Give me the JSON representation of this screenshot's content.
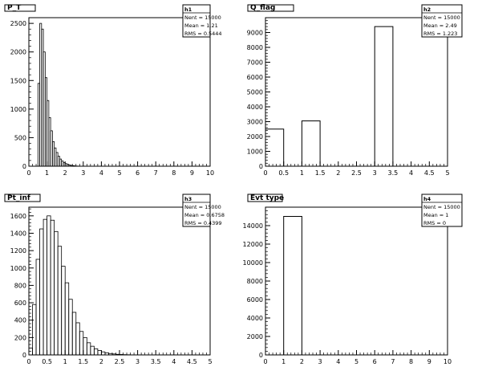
{
  "chart_data": [
    {
      "type": "bar",
      "title": "P_T",
      "stats": {
        "name": "h1",
        "entries": "Nent = 15000",
        "mean": "Mean = 1.21",
        "rms": "RMS = 0.5444"
      },
      "xlim": [
        0,
        10
      ],
      "ylim": [
        0,
        2600
      ],
      "xticks": [
        "0",
        "1",
        "2",
        "3",
        "4",
        "5",
        "6",
        "7",
        "8",
        "9",
        "10"
      ],
      "xtick_values": [
        0,
        1,
        2,
        3,
        4,
        5,
        6,
        7,
        8,
        9,
        10
      ],
      "yticks": [
        "0",
        "500",
        "1000",
        "1500",
        "2000",
        "2500"
      ],
      "ytick_values": [
        0,
        500,
        1000,
        1500,
        2000,
        2500
      ],
      "bin_width": 0.1,
      "bin_start": 0.5,
      "values": [
        1450,
        2500,
        2400,
        2000,
        1550,
        1150,
        850,
        620,
        430,
        320,
        240,
        175,
        125,
        90,
        65,
        45,
        32,
        22,
        15,
        10,
        6,
        3,
        2,
        1,
        1
      ]
    },
    {
      "type": "bar",
      "title": "Q_flag",
      "stats": {
        "name": "h2",
        "entries": "Nent = 15000",
        "mean": "Mean = 2.49",
        "rms": "RMS = 1.223"
      },
      "xlim": [
        0,
        5
      ],
      "ylim": [
        0,
        10000
      ],
      "xticks": [
        "0",
        "0.5",
        "1",
        "1.5",
        "2",
        "2.5",
        "3",
        "3.5",
        "4",
        "4.5",
        "5"
      ],
      "xtick_values": [
        0,
        0.5,
        1,
        1.5,
        2,
        2.5,
        3,
        3.5,
        4,
        4.5,
        5
      ],
      "yticks": [
        "0",
        "1000",
        "2000",
        "3000",
        "4000",
        "5000",
        "6000",
        "7000",
        "8000",
        "9000"
      ],
      "ytick_values": [
        0,
        1000,
        2000,
        3000,
        4000,
        5000,
        6000,
        7000,
        8000,
        9000
      ],
      "bars": [
        {
          "x0": 0,
          "x1": 0.5,
          "value": 2500
        },
        {
          "x0": 1,
          "x1": 1.5,
          "value": 3050
        },
        {
          "x0": 3,
          "x1": 3.5,
          "value": 9400
        }
      ]
    },
    {
      "type": "bar",
      "title": "Pt_inf",
      "stats": {
        "name": "h3",
        "entries": "Nent = 15000",
        "mean": "Mean = 0.6758",
        "rms": "RMS = 0.4399"
      },
      "xlim": [
        0,
        5
      ],
      "ylim": [
        0,
        1700
      ],
      "xticks": [
        "0",
        "0.5",
        "1",
        "1.5",
        "2",
        "2.5",
        "3",
        "3.5",
        "4",
        "4.5",
        "5"
      ],
      "xtick_values": [
        0,
        0.5,
        1,
        1.5,
        2,
        2.5,
        3,
        3.5,
        4,
        4.5,
        5
      ],
      "yticks": [
        "0",
        "200",
        "400",
        "600",
        "800",
        "1000",
        "1200",
        "1400",
        "1600"
      ],
      "ytick_values": [
        0,
        200,
        400,
        600,
        800,
        1000,
        1200,
        1400,
        1600
      ],
      "bin_width": 0.1,
      "bin_start": 0,
      "values": [
        80,
        580,
        1100,
        1450,
        1560,
        1600,
        1550,
        1420,
        1250,
        1020,
        830,
        640,
        490,
        370,
        270,
        200,
        140,
        100,
        70,
        50,
        35,
        24,
        16,
        11,
        7,
        5,
        3,
        2,
        1,
        1
      ]
    },
    {
      "type": "bar",
      "title": "Evt type",
      "stats": {
        "name": "h4",
        "entries": "Nent = 15000",
        "mean": "Mean = 1",
        "rms": "RMS = 0"
      },
      "xlim": [
        0,
        10
      ],
      "ylim": [
        0,
        16000
      ],
      "xticks": [
        "0",
        "1",
        "2",
        "3",
        "4",
        "5",
        "6",
        "7",
        "8",
        "9",
        "10"
      ],
      "xtick_values": [
        0,
        1,
        2,
        3,
        4,
        5,
        6,
        7,
        8,
        9,
        10
      ],
      "yticks": [
        "0",
        "2000",
        "4000",
        "6000",
        "8000",
        "10000",
        "12000",
        "14000"
      ],
      "ytick_values": [
        0,
        2000,
        4000,
        6000,
        8000,
        10000,
        12000,
        14000
      ],
      "bars": [
        {
          "x0": 1,
          "x1": 2,
          "value": 15000
        }
      ]
    }
  ]
}
